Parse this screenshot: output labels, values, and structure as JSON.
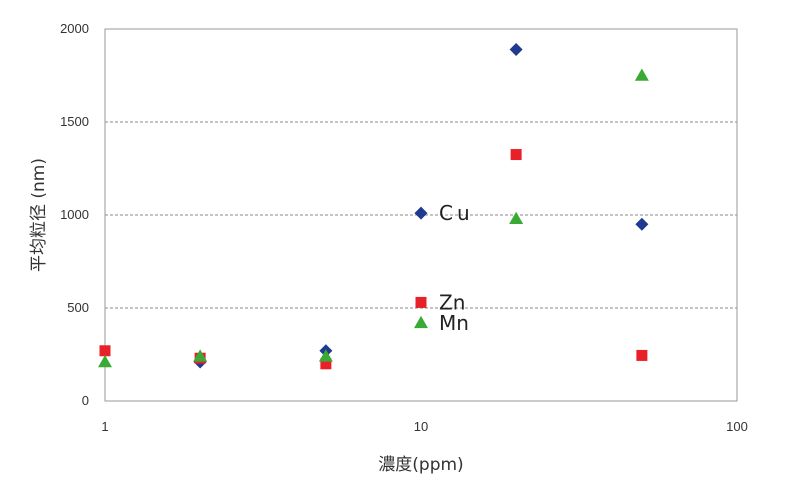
{
  "chart_data": {
    "type": "scatter",
    "xscale": "log",
    "xlim": [
      1,
      100
    ],
    "ylim": [
      0,
      2000
    ],
    "xticks": [
      1,
      10,
      100
    ],
    "yticks": [
      0,
      500,
      1000,
      1500,
      2000
    ],
    "xtick_labels": [
      "1",
      "10",
      "100"
    ],
    "ytick_labels": [
      "0",
      "500",
      "1000",
      "1500",
      "2000"
    ],
    "xlabel": "濃度(ppm)",
    "ylabel": "平均粒径 (nm)",
    "grid": "horizontal dashed",
    "series": [
      {
        "name": "Cu",
        "marker": "diamond",
        "color": "#1f3a8f",
        "points": [
          [
            2,
            210
          ],
          [
            5,
            270
          ],
          [
            10,
            1010
          ],
          [
            20,
            1890
          ],
          [
            50,
            950
          ]
        ]
      },
      {
        "name": "Zn",
        "marker": "square",
        "color": "#e8202a",
        "points": [
          [
            1,
            270
          ],
          [
            2,
            230
          ],
          [
            5,
            200
          ],
          [
            10,
            530
          ],
          [
            20,
            1325
          ],
          [
            50,
            245
          ]
        ]
      },
      {
        "name": "Mn",
        "marker": "triangle",
        "color": "#3aaa35",
        "points": [
          [
            1,
            210
          ],
          [
            2,
            240
          ],
          [
            5,
            240
          ],
          [
            10,
            420
          ],
          [
            20,
            980
          ],
          [
            50,
            1750
          ]
        ]
      }
    ],
    "series_labels": [
      {
        "text": "Cu",
        "x": 10,
        "y": 1010
      },
      {
        "text": "Zn",
        "x": 10,
        "y": 530
      },
      {
        "text": "Mn",
        "x": 10,
        "y": 420
      }
    ]
  }
}
